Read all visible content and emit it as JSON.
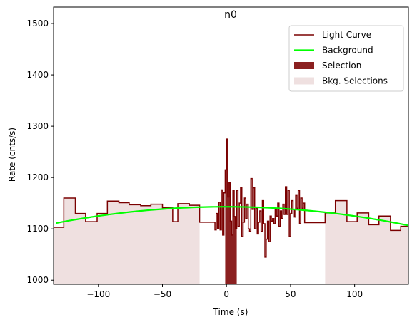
{
  "chart_data": {
    "type": "line",
    "title": "n0",
    "xlabel": "Time (s)",
    "ylabel": "Rate (cnts/s)",
    "xlim": [
      -135,
      142
    ],
    "ylim": [
      992,
      1532
    ],
    "xticks": [
      -100,
      -50,
      0,
      50,
      100
    ],
    "yticks": [
      1000,
      1100,
      1200,
      1300,
      1400,
      1500
    ],
    "grid": false,
    "legend_position": "top-right",
    "legend": [
      {
        "label": "Light Curve",
        "kind": "line",
        "color": "#7a0000"
      },
      {
        "label": "Background",
        "kind": "line",
        "color": "#00ff00"
      },
      {
        "label": "Selection",
        "kind": "patch",
        "color": "#8b2020"
      },
      {
        "label": "Bkg. Selections",
        "kind": "patch",
        "color": "#efe0e0"
      }
    ],
    "bkg_selections": [
      [
        -135,
        -21
      ],
      [
        77,
        142
      ]
    ],
    "selection": [
      -1,
      8
    ],
    "light_curve": {
      "color": "#7a0000",
      "steps": [
        [
          -135,
          1103
        ],
        [
          -127,
          1160
        ],
        [
          -118,
          1130
        ],
        [
          -110,
          1114
        ],
        [
          -101,
          1130
        ],
        [
          -93,
          1154
        ],
        [
          -84,
          1151
        ],
        [
          -76,
          1147
        ],
        [
          -67,
          1145
        ],
        [
          -59,
          1148
        ],
        [
          -50,
          1141
        ],
        [
          -42,
          1114
        ],
        [
          -38,
          1149
        ],
        [
          -29,
          1146
        ],
        [
          -21,
          1113
        ],
        [
          -12,
          1113
        ],
        [
          -9,
          1098
        ],
        [
          -8,
          1130
        ],
        [
          -7,
          1101
        ],
        [
          -6,
          1152
        ],
        [
          -5,
          1098
        ],
        [
          -4,
          1176
        ],
        [
          -3,
          1088
        ],
        [
          -2,
          1170
        ],
        [
          -1,
          1215
        ],
        [
          0,
          1275
        ],
        [
          1,
          1162
        ],
        [
          2,
          1190
        ],
        [
          3,
          1115
        ],
        [
          4,
          1088
        ],
        [
          5,
          1175
        ],
        [
          6,
          1124
        ],
        [
          7,
          1100
        ],
        [
          8,
          1175
        ],
        [
          9,
          1105
        ],
        [
          10,
          1150
        ],
        [
          11,
          1180
        ],
        [
          12,
          1085
        ],
        [
          13,
          1113
        ],
        [
          14,
          1160
        ],
        [
          15,
          1120
        ],
        [
          16,
          1148
        ],
        [
          17,
          1100
        ],
        [
          18,
          1095
        ],
        [
          19,
          1198
        ],
        [
          20,
          1138
        ],
        [
          21,
          1180
        ],
        [
          22,
          1100
        ],
        [
          23,
          1140
        ],
        [
          24,
          1090
        ],
        [
          25,
          1113
        ],
        [
          26,
          1135
        ],
        [
          27,
          1095
        ],
        [
          28,
          1155
        ],
        [
          29,
          1110
        ],
        [
          30,
          1045
        ],
        [
          31,
          1080
        ],
        [
          32,
          1115
        ],
        [
          33,
          1075
        ],
        [
          34,
          1125
        ],
        [
          35,
          1115
        ],
        [
          36,
          1120
        ],
        [
          37,
          1110
        ],
        [
          38,
          1140
        ],
        [
          39,
          1125
        ],
        [
          40,
          1150
        ],
        [
          41,
          1105
        ],
        [
          42,
          1135
        ],
        [
          43,
          1120
        ],
        [
          44,
          1148
        ],
        [
          45,
          1128
        ],
        [
          46,
          1182
        ],
        [
          47,
          1128
        ],
        [
          48,
          1175
        ],
        [
          49,
          1085
        ],
        [
          50,
          1130
        ],
        [
          51,
          1155
        ],
        [
          52,
          1138
        ],
        [
          53,
          1123
        ],
        [
          54,
          1165
        ],
        [
          55,
          1140
        ],
        [
          56,
          1175
        ],
        [
          57,
          1110
        ],
        [
          58,
          1160
        ],
        [
          59,
          1140
        ],
        [
          60,
          1150
        ],
        [
          61,
          1112
        ],
        [
          62,
          1112
        ],
        [
          77,
          1131
        ],
        [
          85,
          1155
        ],
        [
          94,
          1114
        ],
        [
          102,
          1131
        ],
        [
          111,
          1108
        ],
        [
          119,
          1125
        ],
        [
          128,
          1097
        ],
        [
          136,
          1105
        ],
        [
          142,
          1105
        ]
      ]
    },
    "background": {
      "color": "#00ff00",
      "model": "quadratic",
      "coefficients": [
        1143,
        -0.0008,
        -0.0018
      ]
    }
  }
}
